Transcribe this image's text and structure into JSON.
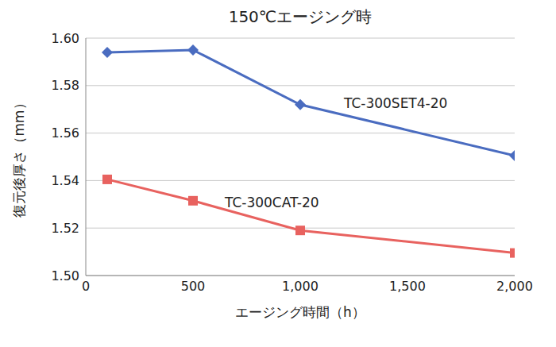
{
  "chart_data": {
    "type": "line",
    "title": "150℃エージング時",
    "x_label": "エージング時間（h）",
    "y_label": "復元後厚さ（mm）",
    "x": [
      100,
      500,
      1000,
      2000
    ],
    "series": [
      {
        "name": "TC-300SET4-20",
        "color": "#4a6cc0",
        "marker": "diamond",
        "values": [
          1.594,
          1.595,
          1.572,
          1.5505
        ]
      },
      {
        "name": "TC-300CAT-20",
        "color": "#e8625f",
        "marker": "square",
        "values": [
          1.5405,
          1.5315,
          1.519,
          1.5095
        ]
      }
    ],
    "xlim": [
      0,
      2000
    ],
    "xticks": [
      0,
      500,
      {
        "value": 1000,
        "label": "1,000"
      },
      {
        "value": 1500,
        "label": "1,500"
      },
      {
        "value": 2000,
        "label": "2,000"
      }
    ],
    "ylim": [
      1.5,
      1.6
    ],
    "yticks": [
      {
        "value": 1.5,
        "label": "1.50"
      },
      {
        "value": 1.52,
        "label": "1.52"
      },
      {
        "value": 1.54,
        "label": "1.54"
      },
      {
        "value": 1.56,
        "label": "1.56"
      },
      {
        "value": 1.58,
        "label": "1.58"
      },
      {
        "value": 1.6,
        "label": "1.60"
      }
    ],
    "grid": true
  }
}
